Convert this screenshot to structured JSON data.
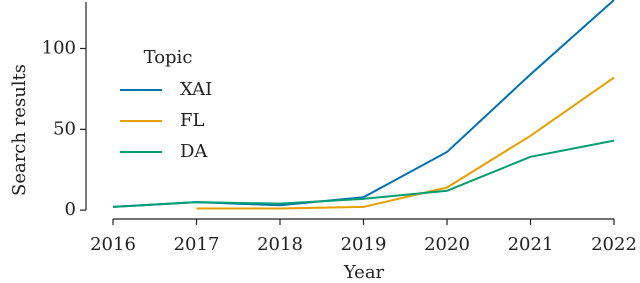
{
  "chart_data": {
    "type": "line",
    "x_label": "Year",
    "y_label": "Search results",
    "x": [
      2016,
      2017,
      2018,
      2019,
      2020,
      2021,
      2022
    ],
    "series": [
      {
        "name": "XAI",
        "color": "#0072b2",
        "values": [
          2,
          5,
          3,
          8,
          36,
          84,
          130
        ]
      },
      {
        "name": "FL",
        "color": "#e69f00",
        "values": [
          null,
          1,
          1,
          2,
          14,
          46,
          82
        ]
      },
      {
        "name": "DA",
        "color": "#009e73",
        "values": [
          2,
          5,
          4,
          7,
          12,
          33,
          43
        ]
      }
    ],
    "xlim": [
      2016,
      2022
    ],
    "xticks": [
      2016,
      2017,
      2018,
      2019,
      2020,
      2021,
      2022
    ],
    "ylim": [
      -3,
      130
    ],
    "yticks": [
      0,
      50,
      100
    ],
    "legend_title": "Topic",
    "legend_position": "upper left",
    "grid": false
  }
}
